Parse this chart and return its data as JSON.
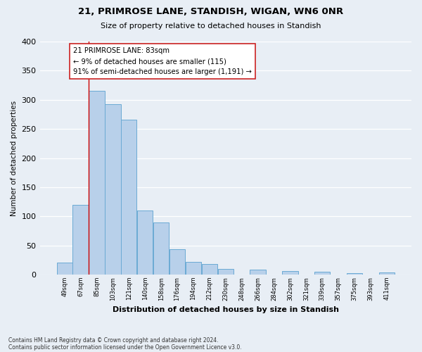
{
  "title": "21, PRIMROSE LANE, STANDISH, WIGAN, WN6 0NR",
  "subtitle": "Size of property relative to detached houses in Standish",
  "xlabel": "Distribution of detached houses by size in Standish",
  "ylabel": "Number of detached properties",
  "bar_labels": [
    "49sqm",
    "67sqm",
    "85sqm",
    "103sqm",
    "121sqm",
    "140sqm",
    "158sqm",
    "176sqm",
    "194sqm",
    "212sqm",
    "230sqm",
    "248sqm",
    "266sqm",
    "284sqm",
    "302sqm",
    "321sqm",
    "339sqm",
    "357sqm",
    "375sqm",
    "393sqm",
    "411sqm"
  ],
  "bar_values": [
    20,
    120,
    315,
    293,
    266,
    110,
    90,
    44,
    22,
    18,
    10,
    0,
    8,
    0,
    6,
    0,
    5,
    0,
    2,
    0,
    4
  ],
  "bar_color": "#b8d0ea",
  "bar_edge_color": "#6aaad4",
  "bg_color": "#e8eef5",
  "grid_color": "#ffffff",
  "vline_color": "#cc0000",
  "annotation_text": "21 PRIMROSE LANE: 83sqm\n← 9% of detached houses are smaller (115)\n91% of semi-detached houses are larger (1,191) →",
  "annotation_box_color": "#ffffff",
  "annotation_box_edge": "#cc2222",
  "ylim": [
    0,
    400
  ],
  "yticks": [
    0,
    50,
    100,
    150,
    200,
    250,
    300,
    350,
    400
  ],
  "footnote_line1": "Contains HM Land Registry data © Crown copyright and database right 2024.",
  "footnote_line2": "Contains public sector information licensed under the Open Government Licence v3.0."
}
